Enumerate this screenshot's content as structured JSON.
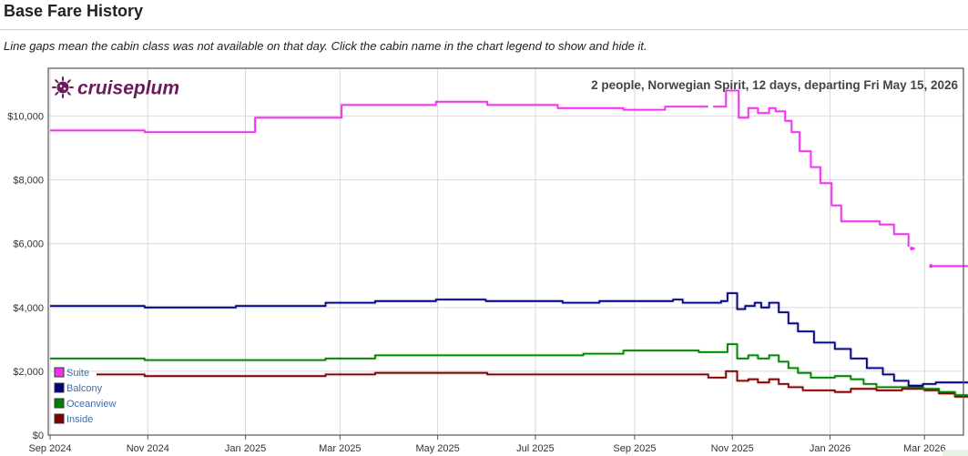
{
  "page": {
    "title": "Base Fare History",
    "subtitle": "Line gaps mean the cabin class was not available on that day. Click the cabin name in the chart legend to show and hide it."
  },
  "brand": {
    "name": "cruiseplum",
    "color": "#6b1a5c"
  },
  "chart_data": {
    "type": "line",
    "step": true,
    "title": "2 people, Norwegian Spirit, 12 days, departing Fri May 15, 2026",
    "xlabel": "",
    "ylabel": "",
    "x_range": [
      "2024-09-01",
      "2026-03-31"
    ],
    "ylim": [
      0,
      11500
    ],
    "grid": true,
    "legend_position": "bottom-left",
    "x_ticks": [
      {
        "label": "Sep 2024",
        "date": "2024-09-01"
      },
      {
        "label": "Nov 2024",
        "date": "2024-11-01"
      },
      {
        "label": "Jan 2025",
        "date": "2025-01-01"
      },
      {
        "label": "Mar 2025",
        "date": "2025-03-01"
      },
      {
        "label": "May 2025",
        "date": "2025-05-01"
      },
      {
        "label": "Jul 2025",
        "date": "2025-07-01"
      },
      {
        "label": "Sep 2025",
        "date": "2025-09-01"
      },
      {
        "label": "Nov 2025",
        "date": "2025-11-01"
      },
      {
        "label": "Jan 2026",
        "date": "2026-01-01"
      },
      {
        "label": "Mar 2026",
        "date": "2026-03-01"
      }
    ],
    "y_ticks": [
      {
        "label": "$0",
        "value": 0
      },
      {
        "label": "$2,000",
        "value": 2000
      },
      {
        "label": "$4,000",
        "value": 4000
      },
      {
        "label": "$6,000",
        "value": 6000
      },
      {
        "label": "$8,000",
        "value": 8000
      },
      {
        "label": "$10,000",
        "value": 10000
      }
    ],
    "series": [
      {
        "name": "Suite",
        "color": "#ee33ee",
        "segments": [
          [
            [
              "2024-09-01",
              9550
            ],
            [
              "2024-10-30",
              9500
            ],
            [
              "2024-12-31",
              9500
            ],
            [
              "2025-01-07",
              9950
            ],
            [
              "2025-02-24",
              9950
            ],
            [
              "2025-03-02",
              10350
            ],
            [
              "2025-04-30",
              10450
            ],
            [
              "2025-06-01",
              10350
            ],
            [
              "2025-07-15",
              10250
            ],
            [
              "2025-08-25",
              10200
            ],
            [
              "2025-09-20",
              10300
            ],
            [
              "2025-10-17",
              10300
            ]
          ],
          [
            [
              "2025-10-20",
              10300
            ],
            [
              "2025-10-28",
              10800
            ],
            [
              "2025-11-05",
              9950
            ],
            [
              "2025-11-11",
              10250
            ],
            [
              "2025-11-17",
              10100
            ],
            [
              "2025-11-24",
              10250
            ],
            [
              "2025-11-28",
              10150
            ],
            [
              "2025-12-04",
              9850
            ],
            [
              "2025-12-08",
              9500
            ],
            [
              "2025-12-13",
              8900
            ],
            [
              "2025-12-20",
              8400
            ],
            [
              "2025-12-26",
              7900
            ],
            [
              "2026-01-02",
              7200
            ],
            [
              "2026-01-08",
              6700
            ],
            [
              "2026-02-01",
              6600
            ],
            [
              "2026-02-10",
              6300
            ],
            [
              "2026-02-19",
              5900
            ]
          ],
          [
            [
              "2026-02-21",
              5850
            ],
            [
              "2026-02-23",
              5850
            ]
          ],
          [
            [
              "2026-03-05",
              5300
            ],
            [
              "2026-03-31",
              5300
            ]
          ]
        ]
      },
      {
        "name": "Balcony",
        "color": "#000080",
        "segments": [
          [
            [
              "2024-09-01",
              4050
            ],
            [
              "2024-10-30",
              4000
            ],
            [
              "2024-12-26",
              4050
            ],
            [
              "2025-02-20",
              4150
            ],
            [
              "2025-03-23",
              4200
            ],
            [
              "2025-04-30",
              4250
            ],
            [
              "2025-05-31",
              4200
            ],
            [
              "2025-07-18",
              4150
            ],
            [
              "2025-08-10",
              4200
            ],
            [
              "2025-09-25",
              4250
            ],
            [
              "2025-10-01",
              4150
            ],
            [
              "2025-10-25",
              4200
            ],
            [
              "2025-10-29",
              4450
            ],
            [
              "2025-11-04",
              3950
            ],
            [
              "2025-11-09",
              4050
            ],
            [
              "2025-11-15",
              4150
            ],
            [
              "2025-11-19",
              4000
            ],
            [
              "2025-11-24",
              4150
            ],
            [
              "2025-11-30",
              3850
            ],
            [
              "2025-12-06",
              3500
            ],
            [
              "2025-12-12",
              3250
            ],
            [
              "2025-12-22",
              2900
            ],
            [
              "2026-01-04",
              2700
            ],
            [
              "2026-01-14",
              2400
            ],
            [
              "2026-01-24",
              2100
            ],
            [
              "2026-02-03",
              1900
            ],
            [
              "2026-02-10",
              1700
            ],
            [
              "2026-02-19",
              1550
            ],
            [
              "2026-02-28",
              1600
            ],
            [
              "2026-03-08",
              1650
            ],
            [
              "2026-03-31",
              1600
            ]
          ]
        ]
      },
      {
        "name": "Oceanview",
        "color": "#008000",
        "segments": [
          [
            [
              "2024-09-01",
              2400
            ],
            [
              "2024-10-30",
              2350
            ],
            [
              "2025-02-20",
              2400
            ],
            [
              "2025-03-23",
              2500
            ],
            [
              "2025-05-31",
              2500
            ],
            [
              "2025-07-31",
              2550
            ],
            [
              "2025-08-25",
              2650
            ],
            [
              "2025-09-25",
              2650
            ],
            [
              "2025-10-11",
              2600
            ],
            [
              "2025-10-29",
              2850
            ],
            [
              "2025-11-04",
              2400
            ],
            [
              "2025-11-11",
              2500
            ],
            [
              "2025-11-17",
              2400
            ],
            [
              "2025-11-24",
              2500
            ],
            [
              "2025-11-30",
              2300
            ],
            [
              "2025-12-06",
              2100
            ],
            [
              "2025-12-12",
              1950
            ],
            [
              "2025-12-20",
              1800
            ],
            [
              "2026-01-04",
              1850
            ],
            [
              "2026-01-14",
              1750
            ],
            [
              "2026-01-22",
              1600
            ],
            [
              "2026-01-30",
              1500
            ],
            [
              "2026-02-28",
              1450
            ],
            [
              "2026-03-10",
              1350
            ],
            [
              "2026-03-20",
              1250
            ],
            [
              "2026-03-31",
              1200
            ]
          ]
        ]
      },
      {
        "name": "Inside",
        "color": "#800000",
        "segments": [
          [
            [
              "2024-09-30",
              1900
            ],
            [
              "2024-10-30",
              1850
            ],
            [
              "2025-02-20",
              1900
            ],
            [
              "2025-03-23",
              1950
            ],
            [
              "2025-04-30",
              1950
            ],
            [
              "2025-06-01",
              1900
            ],
            [
              "2025-09-25",
              1900
            ],
            [
              "2025-10-17",
              1800
            ],
            [
              "2025-10-28",
              2000
            ],
            [
              "2025-11-04",
              1700
            ],
            [
              "2025-11-11",
              1750
            ],
            [
              "2025-11-17",
              1650
            ],
            [
              "2025-11-24",
              1750
            ],
            [
              "2025-11-30",
              1600
            ],
            [
              "2025-12-06",
              1500
            ],
            [
              "2025-12-15",
              1400
            ],
            [
              "2026-01-04",
              1350
            ],
            [
              "2026-01-14",
              1450
            ],
            [
              "2026-01-30",
              1400
            ],
            [
              "2026-02-15",
              1450
            ],
            [
              "2026-03-01",
              1400
            ],
            [
              "2026-03-10",
              1300
            ],
            [
              "2026-03-20",
              1200
            ],
            [
              "2026-03-31",
              1150
            ]
          ]
        ]
      }
    ]
  }
}
